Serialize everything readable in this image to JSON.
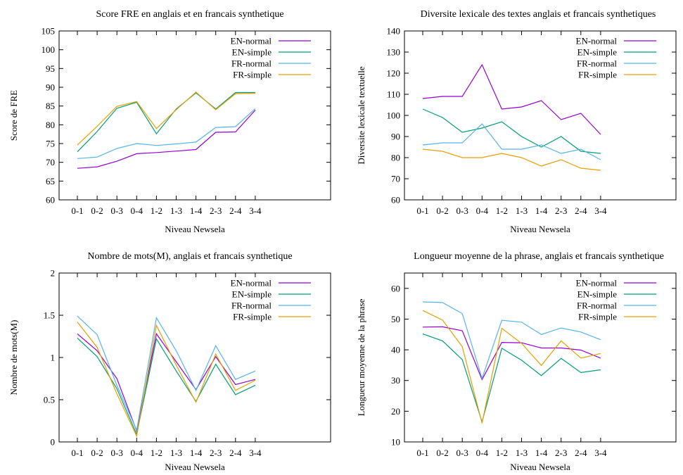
{
  "chart_data": [
    {
      "type": "line",
      "title": "Score FRE en anglais et en francais synthetique",
      "xlabel": "Niveau Newsela",
      "ylabel": "Score de FRE",
      "categories": [
        "0-1",
        "0-2",
        "0-3",
        "0-4",
        "1-2",
        "1-3",
        "1-4",
        "2-3",
        "2-4",
        "3-4"
      ],
      "ylim": [
        60,
        105
      ],
      "yticks": [
        60,
        65,
        70,
        75,
        80,
        85,
        90,
        95,
        100,
        105
      ],
      "ytick_labels": [
        "60",
        "65",
        "70",
        "75",
        "80",
        "85",
        "90",
        "95",
        "100",
        "105"
      ],
      "grid": false,
      "legend_position": "top-right",
      "series": [
        {
          "name": "EN-normal",
          "color": "#9400d3",
          "values": [
            68.4,
            68.8,
            70.3,
            72.3,
            72.6,
            73.0,
            73.4,
            78.0,
            78.1,
            83.9
          ]
        },
        {
          "name": "EN-simple",
          "color": "#009e73",
          "values": [
            72.8,
            78.2,
            84.4,
            86.0,
            77.6,
            84.2,
            88.5,
            84.2,
            88.6,
            88.6
          ]
        },
        {
          "name": "FR-normal",
          "color": "#56b4e9",
          "values": [
            71.0,
            71.4,
            73.7,
            75.0,
            74.5,
            74.9,
            75.4,
            79.3,
            79.5,
            84.3
          ]
        },
        {
          "name": "FR-simple",
          "color": "#e69f00",
          "values": [
            74.6,
            79.6,
            84.9,
            86.2,
            79.0,
            84.0,
            88.7,
            84.0,
            88.3,
            88.4
          ]
        }
      ]
    },
    {
      "type": "line",
      "title": "Diversite lexicale des textes anglais et francais synthetiques",
      "xlabel": "Niveau Newsela",
      "ylabel": "Diversite lexicale textuelle",
      "categories": [
        "0-1",
        "0-2",
        "0-3",
        "0-4",
        "1-2",
        "1-3",
        "1-4",
        "2-3",
        "2-4",
        "3-4"
      ],
      "ylim": [
        60,
        140
      ],
      "yticks": [
        60,
        70,
        80,
        90,
        100,
        110,
        120,
        130,
        140
      ],
      "ytick_labels": [
        "60",
        "70",
        "80",
        "90",
        "100",
        "110",
        "120",
        "130",
        "140"
      ],
      "grid": false,
      "legend_position": "top-right",
      "series": [
        {
          "name": "EN-normal",
          "color": "#9400d3",
          "values": [
            108,
            109,
            109,
            124,
            103,
            104,
            107,
            98,
            101,
            91
          ]
        },
        {
          "name": "EN-simple",
          "color": "#009e73",
          "values": [
            103,
            99,
            92,
            94,
            97,
            90,
            85,
            90,
            83,
            82
          ]
        },
        {
          "name": "FR-normal",
          "color": "#56b4e9",
          "values": [
            86,
            87,
            87,
            96,
            84,
            84,
            86,
            82,
            84,
            79
          ]
        },
        {
          "name": "FR-simple",
          "color": "#e69f00",
          "values": [
            84,
            83,
            80,
            80,
            82,
            80,
            76,
            79,
            75,
            74
          ]
        }
      ]
    },
    {
      "type": "line",
      "title": "Nombre de mots(M), anglais et francais synthetique",
      "xlabel": "Niveau Newsela",
      "ylabel": "Nombre de mots(M)",
      "categories": [
        "0-1",
        "0-2",
        "0-3",
        "0-4",
        "1-2",
        "1-3",
        "1-4",
        "2-3",
        "2-4",
        "3-4"
      ],
      "ylim": [
        0,
        2
      ],
      "yticks": [
        0,
        0.5,
        1,
        1.5,
        2
      ],
      "ytick_labels": [
        "0",
        "0.5",
        "1",
        "1.5",
        "2"
      ],
      "grid": false,
      "legend_position": "top-right",
      "series": [
        {
          "name": "EN-normal",
          "color": "#9400d3",
          "values": [
            1.28,
            1.08,
            0.75,
            0.13,
            1.28,
            0.95,
            0.62,
            1.01,
            0.68,
            0.74
          ]
        },
        {
          "name": "EN-simple",
          "color": "#009e73",
          "values": [
            1.23,
            1.01,
            0.63,
            0.09,
            1.22,
            0.84,
            0.48,
            0.92,
            0.56,
            0.67
          ]
        },
        {
          "name": "FR-normal",
          "color": "#56b4e9",
          "values": [
            1.49,
            1.27,
            0.67,
            0.14,
            1.47,
            1.08,
            0.61,
            1.14,
            0.74,
            0.84
          ]
        },
        {
          "name": "FR-simple",
          "color": "#e69f00",
          "values": [
            1.42,
            1.12,
            0.57,
            0.07,
            1.38,
            0.91,
            0.47,
            1.04,
            0.61,
            0.73
          ]
        }
      ]
    },
    {
      "type": "line",
      "title": "Longueur moyenne de la phrase, anglais et francais synthetique",
      "xlabel": "Niveau Newsela",
      "ylabel": "Longueur moyenne de la phrase",
      "categories": [
        "0-1",
        "0-2",
        "0-3",
        "0-4",
        "1-2",
        "1-3",
        "1-4",
        "2-3",
        "2-4",
        "3-4"
      ],
      "ylim": [
        10,
        65
      ],
      "yticks": [
        10,
        20,
        30,
        40,
        50,
        60
      ],
      "ytick_labels": [
        "10",
        "20",
        "30",
        "40",
        "50",
        "60"
      ],
      "grid": false,
      "legend_position": "top-right",
      "series": [
        {
          "name": "EN-normal",
          "color": "#9400d3",
          "values": [
            47.4,
            47.5,
            46.2,
            30.3,
            42.4,
            42.3,
            40.6,
            40.6,
            39.9,
            37.3
          ]
        },
        {
          "name": "EN-simple",
          "color": "#009e73",
          "values": [
            45.2,
            42.9,
            36.8,
            16.5,
            40.5,
            36.6,
            31.6,
            37.2,
            32.6,
            33.5
          ]
        },
        {
          "name": "FR-normal",
          "color": "#56b4e9",
          "values": [
            55.6,
            55.4,
            51.8,
            30.7,
            49.6,
            49.0,
            45.0,
            47.1,
            45.8,
            43.3
          ]
        },
        {
          "name": "FR-simple",
          "color": "#e69f00",
          "values": [
            52.8,
            49.7,
            41.0,
            16.1,
            47.0,
            42.1,
            34.9,
            42.9,
            37.3,
            38.8
          ]
        }
      ]
    }
  ]
}
